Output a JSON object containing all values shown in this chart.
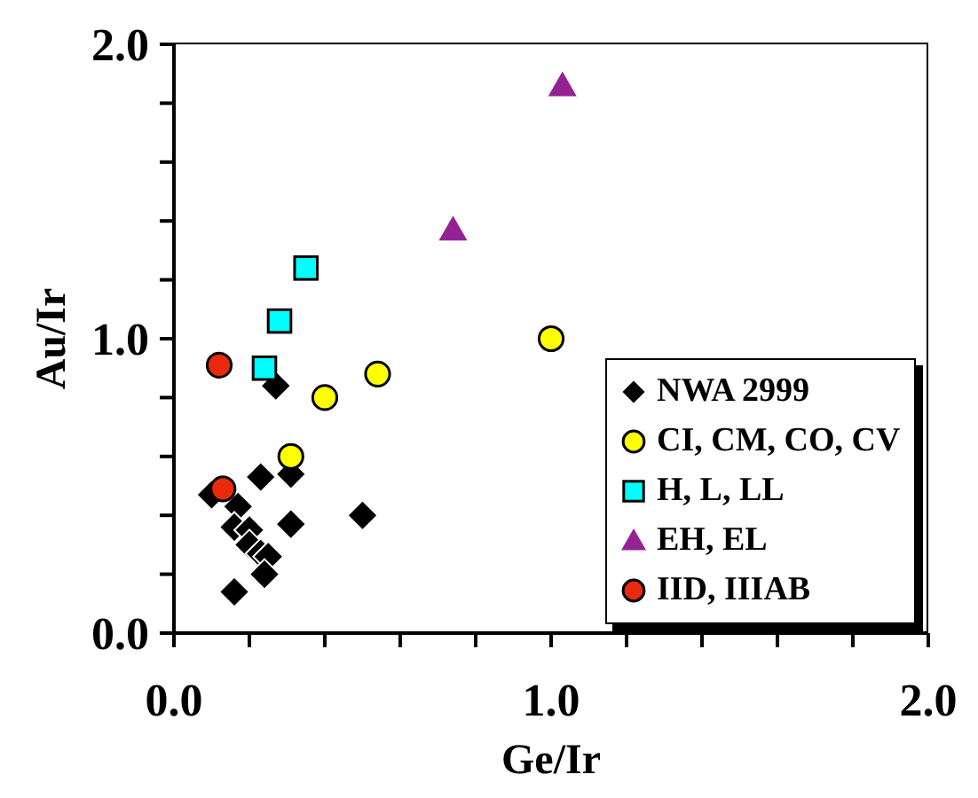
{
  "chart_data": {
    "type": "scatter",
    "xlabel": "Ge/Ir",
    "ylabel": "Au/Ir",
    "xlim": [
      0,
      2
    ],
    "ylim": [
      0,
      2
    ],
    "xticks": [
      {
        "value": 0,
        "label": "0.0"
      },
      {
        "value": 0.2,
        "label": null
      },
      {
        "value": 0.4,
        "label": null
      },
      {
        "value": 0.6,
        "label": null
      },
      {
        "value": 0.8,
        "label": null
      },
      {
        "value": 1,
        "label": "1.0"
      },
      {
        "value": 1.2,
        "label": null
      },
      {
        "value": 1.4,
        "label": null
      },
      {
        "value": 1.6,
        "label": null
      },
      {
        "value": 1.8,
        "label": null
      },
      {
        "value": 2,
        "label": "2.0"
      }
    ],
    "yticks": [
      {
        "value": 0,
        "label": "0.0"
      },
      {
        "value": 0.2,
        "label": null
      },
      {
        "value": 0.4,
        "label": null
      },
      {
        "value": 0.6,
        "label": null
      },
      {
        "value": 0.8,
        "label": null
      },
      {
        "value": 1,
        "label": "1.0"
      },
      {
        "value": 1.2,
        "label": null
      },
      {
        "value": 1.4,
        "label": null
      },
      {
        "value": 1.6,
        "label": null
      },
      {
        "value": 1.8,
        "label": null
      },
      {
        "value": 2,
        "label": "2.0"
      }
    ],
    "legend": "bottom right",
    "series": [
      {
        "name": "NWA 2999",
        "color": "#000000",
        "marker": "diamond",
        "x": [
          0.27,
          0.23,
          0.31,
          0.1,
          0.17,
          0.16,
          0.2,
          0.31,
          0.5,
          0.2,
          0.23,
          0.25,
          0.24,
          0.16
        ],
        "values": [
          0.84,
          0.53,
          0.54,
          0.47,
          0.43,
          0.36,
          0.35,
          0.37,
          0.4,
          0.3,
          0.27,
          0.26,
          0.2,
          0.14
        ]
      },
      {
        "name": "CI, CM, CO, CV",
        "color": "#ffff00",
        "marker": "circle",
        "x": [
          0.4,
          0.54,
          0.31,
          1.0
        ],
        "values": [
          0.8,
          0.88,
          0.6,
          1.0
        ]
      },
      {
        "name": "H, L, LL",
        "color": "#00ffff",
        "marker": "square",
        "x": [
          0.24,
          0.28,
          0.35
        ],
        "values": [
          0.9,
          1.06,
          1.24
        ]
      },
      {
        "name": "EH, EL",
        "color": "#952295",
        "marker": "triangle",
        "x": [
          0.74,
          1.03
        ],
        "values": [
          1.37,
          1.86
        ]
      },
      {
        "name": "IID, IIIAB",
        "color": "#e8290b",
        "marker": "circle",
        "x": [
          0.12,
          0.13
        ],
        "values": [
          0.91,
          0.49
        ]
      }
    ]
  }
}
